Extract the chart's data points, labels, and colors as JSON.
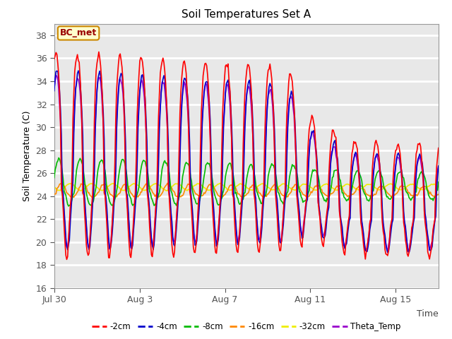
{
  "title": "Soil Temperatures Set A",
  "xlabel": "Time",
  "ylabel": "Soil Temperature (C)",
  "ylim": [
    16,
    39
  ],
  "yticks": [
    16,
    18,
    20,
    22,
    24,
    26,
    28,
    30,
    32,
    34,
    36,
    38
  ],
  "plot_bg_color": "#e8e8e8",
  "series": {
    "-2cm": {
      "color": "#ff0000",
      "lw": 1.2
    },
    "-4cm": {
      "color": "#0000cc",
      "lw": 1.2
    },
    "-8cm": {
      "color": "#00bb00",
      "lw": 1.2
    },
    "-16cm": {
      "color": "#ff8800",
      "lw": 1.2
    },
    "-32cm": {
      "color": "#eeee00",
      "lw": 1.2
    },
    "Theta_Temp": {
      "color": "#9900cc",
      "lw": 1.2
    }
  },
  "legend_label": "BC_met",
  "legend_bg": "#ffffcc",
  "legend_edge": "#cc8800",
  "x_tick_labels": [
    "Jul 30",
    "Aug 3",
    "Aug 7",
    "Aug 11",
    "Aug 15"
  ],
  "x_tick_positions": [
    0,
    4,
    8,
    12,
    16
  ],
  "n_days": 18,
  "base_temp": 24.5,
  "grid_color": "#ffffff",
  "grid_lw": 2.0
}
